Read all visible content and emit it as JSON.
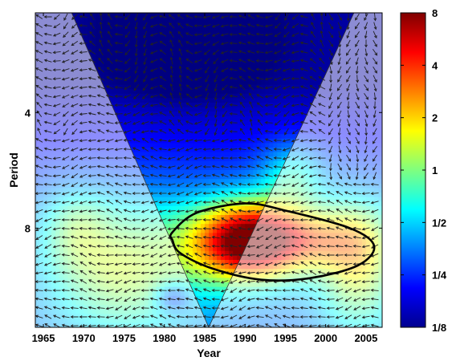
{
  "chart_data": {
    "type": "heatmap",
    "subtype": "wavelet coherence with phase arrows",
    "title": "",
    "xlabel": "Year",
    "ylabel": "Period",
    "xlim": [
      1964,
      2007
    ],
    "ylim_period": [
      2.2,
      14.5
    ],
    "y_scale": "log2",
    "x_ticks": [
      1965,
      1970,
      1975,
      1980,
      1985,
      1990,
      1995,
      2000,
      2005
    ],
    "y_ticks": [
      {
        "value": 4,
        "label": "4"
      },
      {
        "value": 8,
        "label": "8"
      }
    ],
    "colorbar": {
      "scale": "log2",
      "range": [
        0.125,
        8
      ],
      "ticks": [
        {
          "value": 8,
          "label": "8"
        },
        {
          "value": 4,
          "label": "4"
        },
        {
          "value": 2,
          "label": "2"
        },
        {
          "value": 1,
          "label": "1"
        },
        {
          "value": 0.5,
          "label": "1/2"
        },
        {
          "value": 0.25,
          "label": "1/4"
        },
        {
          "value": 0.125,
          "label": "1/8"
        }
      ],
      "colormap": "jet"
    },
    "cone_of_influence": {
      "apex": {
        "year": 1985.5,
        "period": 14.5
      },
      "left_top": {
        "year": 1968.5,
        "period": 2.2
      },
      "right_top": {
        "year": 2003.5,
        "period": 2.2
      },
      "outside_shaded": true
    },
    "significance_contour": [
      [
        1981,
        8.2
      ],
      [
        1984,
        7.3
      ],
      [
        1990,
        6.9
      ],
      [
        1995,
        7.2
      ],
      [
        2003,
        8.0
      ],
      [
        2006,
        8.9
      ],
      [
        2004,
        10.0
      ],
      [
        1998,
        10.8
      ],
      [
        1992,
        10.9
      ],
      [
        1986,
        10.2
      ],
      [
        1982,
        9.3
      ],
      [
        1981,
        8.6
      ]
    ],
    "dominant_feature": {
      "year_range": [
        1981,
        2006
      ],
      "period_range": [
        6.9,
        10.9
      ],
      "peak_value": 6
    },
    "grid": false
  }
}
